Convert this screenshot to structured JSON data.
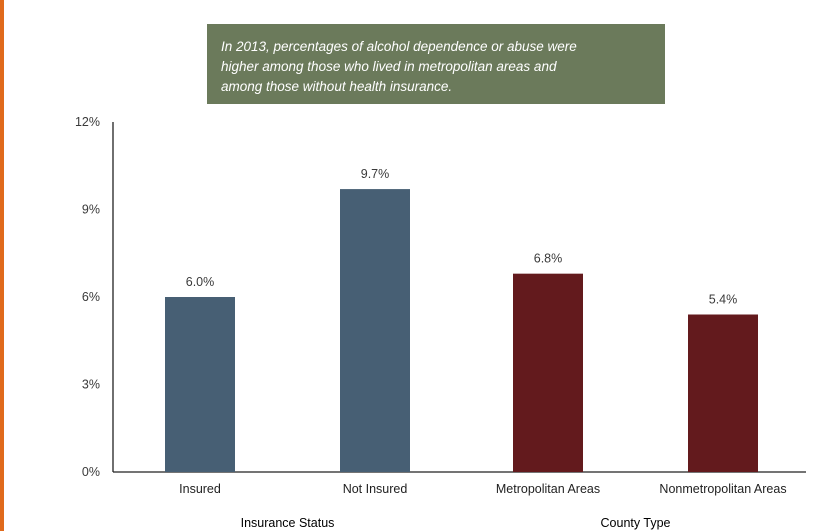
{
  "callout": {
    "lines": [
      "In 2013, percentages of alcohol dependence or abuse were",
      "higher among those who lived in metropolitan areas and",
      "among those without health insurance."
    ]
  },
  "chart_data": {
    "type": "bar",
    "categories": [
      "Insured",
      "Not Insured",
      "Metropolitan Areas",
      "Nonmetropolitan Areas"
    ],
    "values": [
      6.0,
      9.7,
      6.8,
      5.4
    ],
    "value_labels": [
      "6.0%",
      "9.7%",
      "6.8%",
      "5.4%"
    ],
    "groups": [
      {
        "label": "Insurance Status",
        "categories": [
          "Insured",
          "Not Insured"
        ],
        "color": "#475f74"
      },
      {
        "label": "County Type",
        "categories": [
          "Metropolitan Areas",
          "Nonmetropolitan Areas"
        ],
        "color": "#631a1d"
      }
    ],
    "yticks": [
      "0%",
      "3%",
      "6%",
      "9%",
      "12%"
    ],
    "ylim": [
      0,
      12
    ],
    "grid": false
  }
}
